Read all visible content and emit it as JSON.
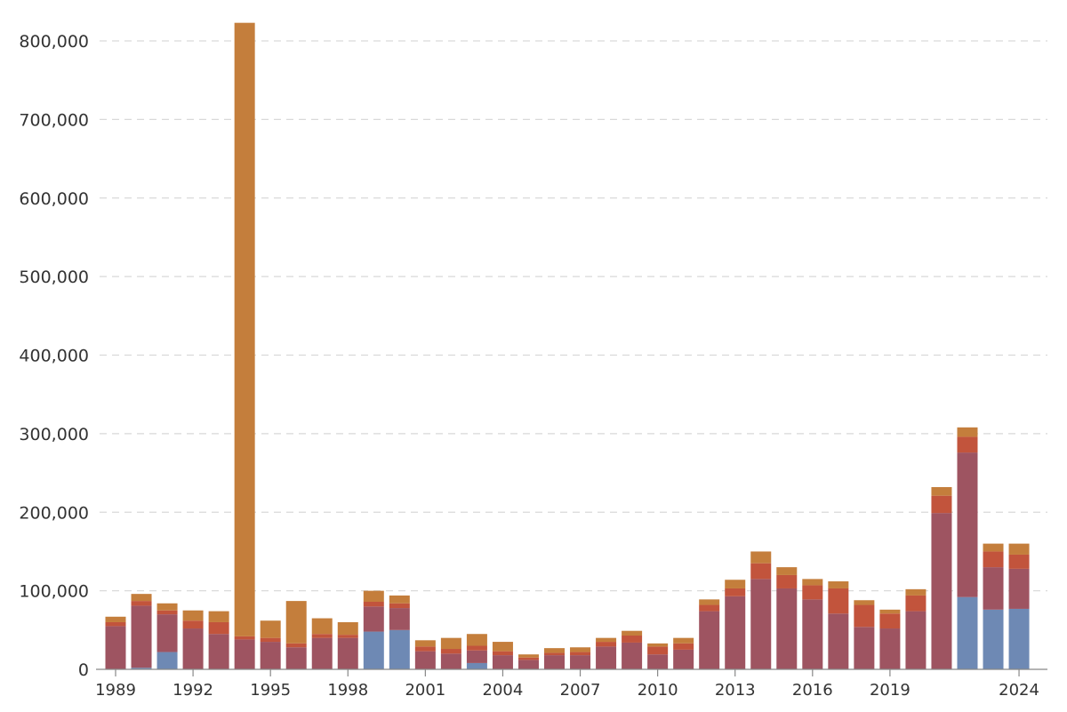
{
  "chart_data": {
    "type": "bar",
    "stacked": true,
    "title": "",
    "xlabel": "",
    "ylabel": "",
    "ylim": [
      0,
      800000
    ],
    "yticks": [
      0,
      100000,
      200000,
      300000,
      400000,
      500000,
      600000,
      700000,
      800000
    ],
    "ytick_labels": [
      "0",
      "100,000",
      "200,000",
      "300,000",
      "400,000",
      "500,000",
      "600,000",
      "700,000",
      "800,000"
    ],
    "xtick_labels": [
      "1989",
      "1992",
      "1995",
      "1998",
      "2001",
      "2004",
      "2007",
      "2010",
      "2013",
      "2016",
      "2019",
      "2024"
    ],
    "grid": true,
    "legend": "none",
    "categories": [
      "1989",
      "1990",
      "1991",
      "1992",
      "1993",
      "1994",
      "1995",
      "1996",
      "1997",
      "1998",
      "1999",
      "2000",
      "2001",
      "2002",
      "2003",
      "2004",
      "2005",
      "2006",
      "2007",
      "2008",
      "2009",
      "2010",
      "2011",
      "2012",
      "2013",
      "2014",
      "2015",
      "2016",
      "2017",
      "2018",
      "2019",
      "2020",
      "2021",
      "2022",
      "2023",
      "2024"
    ],
    "series": [
      {
        "color": "#6e89b4",
        "values": [
          0,
          2000,
          22000,
          0,
          0,
          0,
          0,
          0,
          0,
          0,
          48000,
          50000,
          0,
          0,
          8000,
          0,
          0,
          0,
          0,
          0,
          0,
          0,
          0,
          0,
          0,
          0,
          0,
          0,
          0,
          0,
          0,
          0,
          0,
          92000,
          76000,
          77000
        ]
      },
      {
        "color": "#9e5461",
        "values": [
          55000,
          79000,
          48000,
          52000,
          45000,
          38000,
          35000,
          28000,
          40000,
          40000,
          32000,
          28000,
          23000,
          20000,
          16000,
          18000,
          12000,
          18000,
          18000,
          29000,
          34000,
          19000,
          25000,
          74000,
          93000,
          115000,
          103000,
          89000,
          71000,
          54000,
          52000,
          74000,
          199000,
          184000,
          54000,
          51000
        ]
      },
      {
        "color": "#c2543c",
        "values": [
          5000,
          6000,
          5000,
          10000,
          15000,
          4000,
          5000,
          5000,
          5000,
          4000,
          6000,
          6000,
          6000,
          6000,
          6000,
          5000,
          3000,
          3000,
          4000,
          6000,
          9000,
          10000,
          8000,
          8000,
          10000,
          20000,
          17000,
          18000,
          32000,
          28000,
          19000,
          20000,
          22000,
          20000,
          20000,
          18000
        ]
      },
      {
        "color": "#c47e3c",
        "values": [
          7000,
          9000,
          9000,
          13000,
          14000,
          781000,
          22000,
          54000,
          20000,
          16000,
          14000,
          10000,
          8000,
          14000,
          15000,
          12000,
          4000,
          6000,
          6000,
          5000,
          6000,
          4000,
          7000,
          7000,
          11000,
          15000,
          10000,
          8000,
          9000,
          6000,
          5000,
          8000,
          11000,
          12000,
          10000,
          14000
        ]
      }
    ]
  }
}
